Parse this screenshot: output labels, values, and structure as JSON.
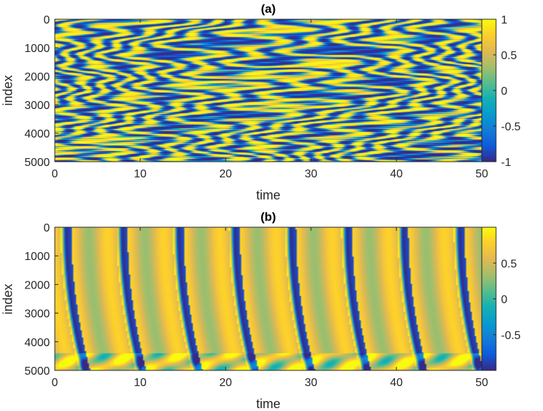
{
  "chart_data": [
    {
      "type": "heatmap",
      "title": "(a)",
      "xlabel": "time",
      "ylabel": "index",
      "xlim": [
        0,
        50
      ],
      "ylim": [
        0,
        5000
      ],
      "y_reversed": true,
      "xticks": [
        0,
        10,
        20,
        30,
        40,
        50
      ],
      "yticks": [
        0,
        1000,
        2000,
        3000,
        4000,
        5000
      ],
      "colorbar": {
        "min": -1,
        "max": 1,
        "ticks": [
          1,
          0.5,
          0,
          -0.5,
          -1
        ]
      },
      "colormap": "parula",
      "pattern": "turbulent oscillation"
    },
    {
      "type": "heatmap",
      "title": "(b)",
      "xlabel": "time",
      "ylabel": "index",
      "xlim": [
        0,
        50
      ],
      "ylim": [
        0,
        5000
      ],
      "y_reversed": true,
      "xticks": [
        0,
        10,
        20,
        30,
        40,
        50
      ],
      "yticks": [
        0,
        1000,
        2000,
        3000,
        4000,
        5000
      ],
      "colorbar": {
        "min": -1,
        "max": 1,
        "ticks": [
          0.5,
          0,
          -0.5
        ]
      },
      "colormap": "parula",
      "pattern": "traveling waves",
      "wave_period": 6.6,
      "wave_tilt": 2.2
    }
  ]
}
